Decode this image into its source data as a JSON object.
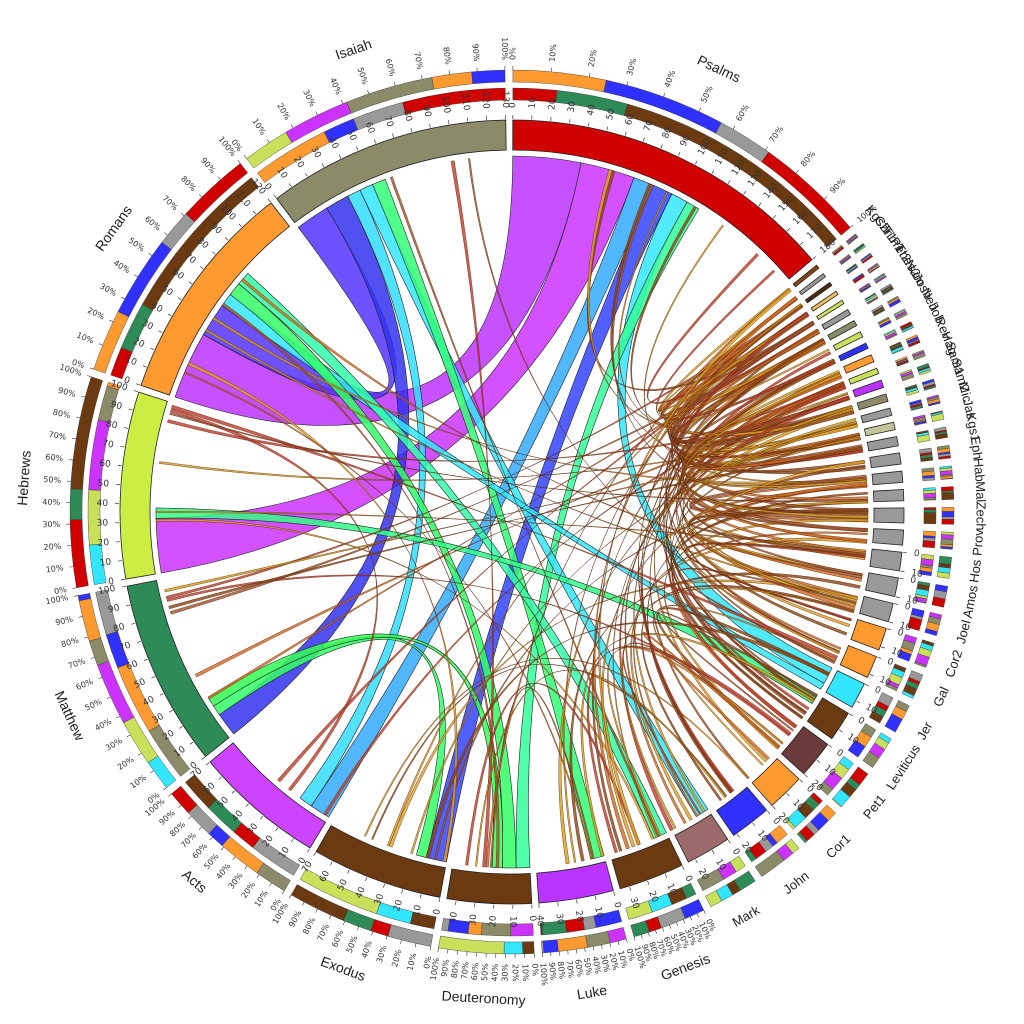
{
  "chart_data": {
    "type": "chord",
    "segments": [
      {
        "name": "Psalms",
        "value": 180,
        "color": "#d00000"
      },
      {
        "name": "Kgs2",
        "value": 2,
        "color": "#8b4513"
      },
      {
        "name": "Chr1",
        "value": 2,
        "color": "#999999"
      },
      {
        "name": "Tim1",
        "value": 2,
        "color": "#4a2a10"
      },
      {
        "name": "Pet2",
        "value": 2,
        "color": "#f0c060"
      },
      {
        "name": "Thes2",
        "value": 2,
        "color": "#c8e05a"
      },
      {
        "name": "Num",
        "value": 3,
        "color": "#999999"
      },
      {
        "name": "Josh",
        "value": 3,
        "color": "#8b8b6a"
      },
      {
        "name": "Neh",
        "value": 3,
        "color": "#c8e05a"
      },
      {
        "name": "Job",
        "value": 3,
        "color": "#3030ff"
      },
      {
        "name": "Rev",
        "value": 4,
        "color": "#ff9a30"
      },
      {
        "name": "Hag",
        "value": 3,
        "color": "#c8e05a"
      },
      {
        "name": "Sam1",
        "value": 4,
        "color": "#bb33ff"
      },
      {
        "name": "Sam2",
        "value": 4,
        "color": "#8b8b6a"
      },
      {
        "name": "Mic",
        "value": 4,
        "color": "#999999"
      },
      {
        "name": "Jas",
        "value": 4,
        "color": "#c4c49a"
      },
      {
        "name": "Kgs1",
        "value": 5,
        "color": "#999999"
      },
      {
        "name": "Eph",
        "value": 6,
        "color": "#999999"
      },
      {
        "name": "Hab",
        "value": 6,
        "color": "#999999"
      },
      {
        "name": "Mal",
        "value": 6,
        "color": "#999999"
      },
      {
        "name": "Zech",
        "value": 8,
        "color": "#999999"
      },
      {
        "name": "Prov",
        "value": 8,
        "color": "#999999"
      },
      {
        "name": "Hos",
        "value": 10,
        "color": "#999999"
      },
      {
        "name": "Amos",
        "value": 10,
        "color": "#999999"
      },
      {
        "name": "Joel",
        "value": 10,
        "color": "#999999"
      },
      {
        "name": "Cor2",
        "value": 12,
        "color": "#ff9a30"
      },
      {
        "name": "Gal",
        "value": 12,
        "color": "#ff9a30"
      },
      {
        "name": "Jer",
        "value": 14,
        "color": "#33e6ff"
      },
      {
        "name": "Leviticus",
        "value": 16,
        "color": "#6b3a10"
      },
      {
        "name": "Pet1",
        "value": 20,
        "color": "#6b3a3a"
      },
      {
        "name": "Cor1",
        "value": 20,
        "color": "#ff9a30"
      },
      {
        "name": "John",
        "value": 22,
        "color": "#3030ff"
      },
      {
        "name": "Mark",
        "value": 24,
        "color": "#9b6b6b"
      },
      {
        "name": "Genesis",
        "value": 35,
        "color": "#6b3a10"
      },
      {
        "name": "Luke",
        "value": 40,
        "color": "#bb33ff"
      },
      {
        "name": "Deuteronomy",
        "value": 45,
        "color": "#6b3a10"
      },
      {
        "name": "Exodus",
        "value": 70,
        "color": "#6b3a10"
      },
      {
        "name": "Acts",
        "value": 70,
        "color": "#cc44ff"
      },
      {
        "name": "Matthew",
        "value": 100,
        "color": "#2e8b57"
      },
      {
        "name": "Hebrews",
        "value": 100,
        "color": "#ccee44"
      },
      {
        "name": "Romans",
        "value": 120,
        "color": "#ff9a30"
      },
      {
        "name": "Isaiah",
        "value": 130,
        "color": "#8b8b6a"
      }
    ],
    "major_links": [
      {
        "source": "Psalms",
        "target": "Romans",
        "value": 40,
        "color": "#bb33ff"
      },
      {
        "source": "Psalms",
        "target": "Hebrews",
        "value": 32,
        "color": "#cc33ff"
      },
      {
        "source": "Psalms",
        "target": "Acts",
        "value": 12,
        "color": "#33aaff"
      },
      {
        "source": "Psalms",
        "target": "Exodus",
        "value": 12,
        "color": "#3344ff"
      },
      {
        "source": "Psalms",
        "target": "Jer",
        "value": 10,
        "color": "#33e6ff"
      },
      {
        "source": "Psalms",
        "target": "Deuteronomy",
        "value": 8,
        "color": "#33ff99"
      },
      {
        "source": "Isaiah",
        "target": "Romans",
        "value": 20,
        "color": "#5533ff"
      },
      {
        "source": "Isaiah",
        "target": "Matthew",
        "value": 14,
        "color": "#3333ee"
      },
      {
        "source": "Isaiah",
        "target": "Acts",
        "value": 8,
        "color": "#33ddff"
      },
      {
        "source": "Isaiah",
        "target": "Mark",
        "value": 8,
        "color": "#33e6ff"
      },
      {
        "source": "Isaiah",
        "target": "Luke",
        "value": 8,
        "color": "#33ff77"
      },
      {
        "source": "Romans",
        "target": "Jer",
        "value": 8,
        "color": "#33e6ff"
      },
      {
        "source": "Romans",
        "target": "Deuteronomy",
        "value": 8,
        "color": "#33ff66"
      },
      {
        "source": "Romans",
        "target": "Genesis",
        "value": 8,
        "color": "#33ffaa"
      },
      {
        "source": "Hebrews",
        "target": "Leviticus",
        "value": 6,
        "color": "#33ff88"
      },
      {
        "source": "Matthew",
        "target": "Exodus",
        "value": 6,
        "color": "#33ff66"
      },
      {
        "source": "Matthew",
        "target": "Deuteronomy",
        "value": 6,
        "color": "#33ff55"
      }
    ],
    "inner_ticks": {
      "Psalms": [
        "0",
        "10",
        "20",
        "30",
        "40",
        "50",
        "60",
        "70",
        "80",
        "90",
        "100",
        "110",
        "120",
        "130",
        "140",
        "150",
        "160",
        "170",
        "180"
      ],
      "Isaiah": [
        "0",
        "10",
        "20",
        "30",
        "40",
        "50",
        "60",
        "70",
        "80",
        "90",
        "100",
        "110",
        "120",
        "130"
      ],
      "Romans": [
        "0",
        "10",
        "20",
        "30",
        "40",
        "50",
        "60",
        "70",
        "80",
        "90",
        "100",
        "110",
        "120"
      ],
      "Hebrews": [
        "0",
        "10",
        "20",
        "30",
        "40",
        "50",
        "60",
        "70",
        "80",
        "90",
        "100"
      ],
      "Matthew": [
        "0",
        "10",
        "20",
        "30",
        "40",
        "50",
        "60",
        "70",
        "80",
        "90",
        "100"
      ],
      "Acts": [
        "0",
        "10",
        "20",
        "30",
        "40",
        "50",
        "60",
        "70"
      ],
      "Exodus": [
        "0",
        "10",
        "20",
        "30",
        "40",
        "50",
        "60",
        "70"
      ],
      "Deuteronomy": [
        "0",
        "10",
        "20",
        "30",
        "40"
      ],
      "Luke": [
        "0",
        "10",
        "20",
        "30",
        "40"
      ],
      "Genesis": [
        "0",
        "10",
        "20",
        "30"
      ],
      "Mark": [
        "0",
        "10",
        "20"
      ],
      "John": [
        "0",
        "10",
        "20"
      ],
      "Cor1": [
        "0",
        "10",
        "20"
      ],
      "Pet1": [
        "0",
        "10",
        "20"
      ],
      "Leviticus": [
        "0",
        "10"
      ],
      "Jer": [
        "0",
        "10"
      ],
      "Gal": [
        "0",
        "10"
      ],
      "Cor2": [
        "0",
        "10"
      ],
      "Joel": [
        "0",
        "10"
      ],
      "Amos": [
        "0",
        "10"
      ],
      "Hos": [
        "0",
        "10"
      ]
    },
    "percent_ticks": [
      "0%",
      "10%",
      "20%",
      "30%",
      "40%",
      "50%",
      "60%",
      "70%",
      "80%",
      "90%",
      "100%"
    ],
    "percent_tick_segments": [
      "Psalms",
      "Isaiah",
      "Romans",
      "Hebrews",
      "Matthew",
      "Acts",
      "Exodus",
      "Deuteronomy",
      "Luke",
      "Genesis"
    ],
    "palette": [
      "#d00000",
      "#ff9a30",
      "#c8e05a",
      "#2e8b57",
      "#3030ff",
      "#cc33ff",
      "#6b3a10",
      "#999999",
      "#8b8b6a",
      "#33e6ff"
    ]
  }
}
